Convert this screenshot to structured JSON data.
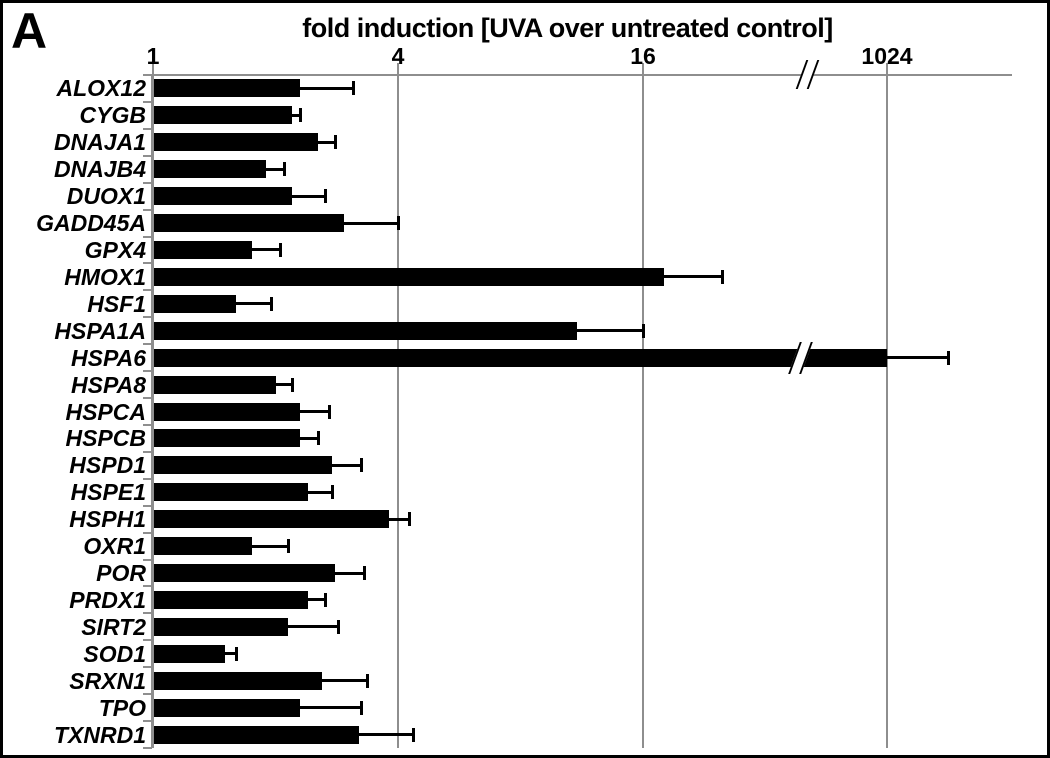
{
  "panel_label": "A",
  "chart_data": {
    "type": "bar",
    "orientation": "horizontal",
    "title": "fold induction [UVA over untreated control]",
    "x_scale": "log2",
    "x_ticks": [
      "1",
      "4",
      "16",
      "1024"
    ],
    "x_tick_values": [
      1,
      4,
      16,
      1024
    ],
    "x_axis_break_between": [
      16,
      1024
    ],
    "broken_bar": "HSPA6",
    "grid": true,
    "legend": "none",
    "error_bars": "upper only",
    "colors": {
      "bar": "#000000",
      "axis_and_grid": "#8e8e8e",
      "error_bar": "#000000",
      "text": "#000000",
      "background": "#ffffff"
    },
    "bars": [
      {
        "gene": "ALOX12",
        "fold": 2.3,
        "err_high": 3.1
      },
      {
        "gene": "CYGB",
        "fold": 2.2,
        "err_high": 2.3
      },
      {
        "gene": "DNAJA1",
        "fold": 2.55,
        "err_high": 2.8
      },
      {
        "gene": "DNAJB4",
        "fold": 1.9,
        "err_high": 2.1
      },
      {
        "gene": "DUOX1",
        "fold": 2.2,
        "err_high": 2.65
      },
      {
        "gene": "GADD45A",
        "fold": 2.95,
        "err_high": 4.0
      },
      {
        "gene": "GPX4",
        "fold": 1.75,
        "err_high": 2.05
      },
      {
        "gene": "HMOX1",
        "fold": 18,
        "err_high": 25
      },
      {
        "gene": "HSF1",
        "fold": 1.6,
        "err_high": 1.95
      },
      {
        "gene": "HSPA1A",
        "fold": 11,
        "err_high": 16
      },
      {
        "gene": "HSPA6",
        "fold": 1024,
        "err_high": 1450
      },
      {
        "gene": "HSPA8",
        "fold": 2.0,
        "err_high": 2.2
      },
      {
        "gene": "HSPCA",
        "fold": 2.3,
        "err_high": 2.7
      },
      {
        "gene": "HSPCB",
        "fold": 2.3,
        "err_high": 2.55
      },
      {
        "gene": "HSPD1",
        "fold": 2.75,
        "err_high": 3.25
      },
      {
        "gene": "HSPE1",
        "fold": 2.4,
        "err_high": 2.75
      },
      {
        "gene": "HSPH1",
        "fold": 3.8,
        "err_high": 4.25
      },
      {
        "gene": "OXR1",
        "fold": 1.75,
        "err_high": 2.15
      },
      {
        "gene": "POR",
        "fold": 2.8,
        "err_high": 3.3
      },
      {
        "gene": "PRDX1",
        "fold": 2.4,
        "err_high": 2.65
      },
      {
        "gene": "SIRT2",
        "fold": 2.15,
        "err_high": 2.85
      },
      {
        "gene": "SOD1",
        "fold": 1.5,
        "err_high": 1.6
      },
      {
        "gene": "SRXN1",
        "fold": 2.6,
        "err_high": 3.35
      },
      {
        "gene": "TPO",
        "fold": 2.3,
        "err_high": 3.25
      },
      {
        "gene": "TXNRD1",
        "fold": 3.2,
        "err_high": 4.35
      }
    ]
  }
}
